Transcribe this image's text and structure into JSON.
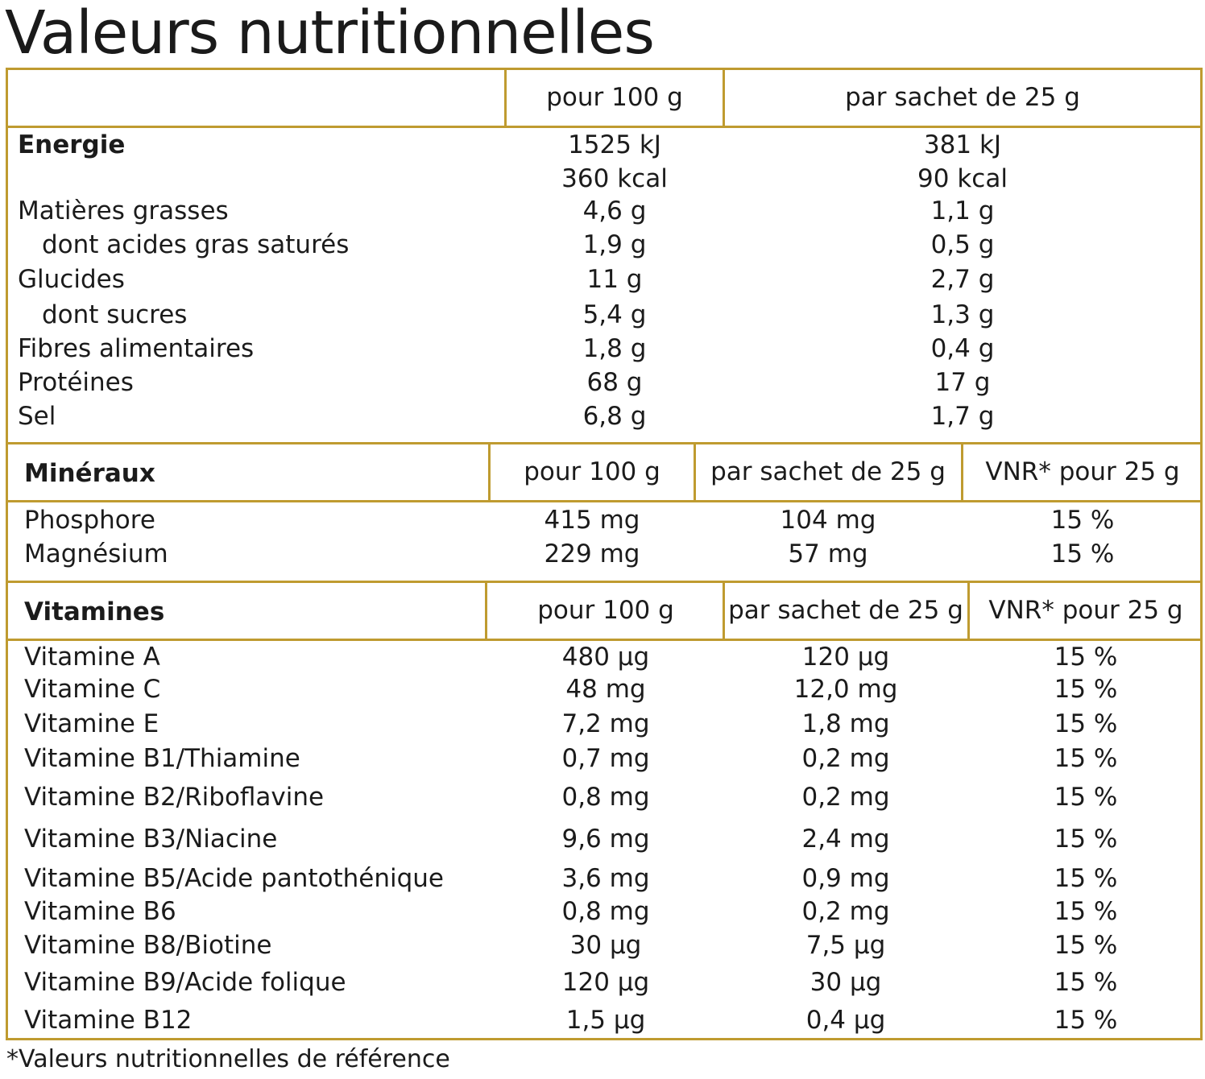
{
  "title": "Valeurs nutritionnelles",
  "nutrition": {
    "headers": [
      "pour 100 g",
      "par sachet de 25 g"
    ],
    "rows": [
      {
        "label": "Energie",
        "v100": "1525 kJ",
        "vsachet": "381 kJ"
      },
      {
        "label": "",
        "v100": "360 kcal",
        "vsachet": "90 kcal"
      },
      {
        "label": "Matières grasses",
        "v100": "4,6 g",
        "vsachet": "1,1 g"
      },
      {
        "label": "dont acides gras saturés",
        "v100": "1,9 g",
        "vsachet": "0,5 g"
      },
      {
        "label": "Glucides",
        "v100": "11 g",
        "vsachet": "2,7 g"
      },
      {
        "label": "dont sucres",
        "v100": "5,4 g",
        "vsachet": "1,3 g"
      },
      {
        "label": "Fibres alimentaires",
        "v100": "1,8 g",
        "vsachet": "0,4 g"
      },
      {
        "label": "Protéines",
        "v100": "68 g",
        "vsachet": "17 g"
      },
      {
        "label": "Sel",
        "v100": "6,8 g",
        "vsachet": "1,7 g"
      }
    ]
  },
  "minerals": {
    "title": "Minéraux",
    "headers": [
      "pour 100 g",
      "par sachet de 25 g",
      "VNR* pour 25 g"
    ],
    "rows": [
      {
        "label": "Phosphore",
        "v100": "415 mg",
        "vsachet": "104 mg",
        "vnr": "15 %"
      },
      {
        "label": "Magnésium",
        "v100": "229 mg",
        "vsachet": "57 mg",
        "vnr": "15 %"
      }
    ]
  },
  "vitamins": {
    "title": "Vitamines",
    "headers": [
      "pour 100 g",
      "par sachet de 25 g",
      "VNR* pour 25 g"
    ],
    "rows": [
      {
        "label": "Vitamine A",
        "v100": "480 µg",
        "vsachet": "120 µg",
        "vnr": "15 %"
      },
      {
        "label": "Vitamine C",
        "v100": "48 mg",
        "vsachet": "12,0 mg",
        "vnr": "15 %"
      },
      {
        "label": "Vitamine E",
        "v100": "7,2 mg",
        "vsachet": "1,8 mg",
        "vnr": "15 %"
      },
      {
        "label": "Vitamine B1/Thiamine",
        "v100": "0,7 mg",
        "vsachet": "0,2 mg",
        "vnr": "15 %"
      },
      {
        "label": "Vitamine B2/Riboflavine",
        "v100": "0,8 mg",
        "vsachet": "0,2 mg",
        "vnr": "15 %"
      },
      {
        "label": "Vitamine B3/Niacine",
        "v100": "9,6 mg",
        "vsachet": "2,4 mg",
        "vnr": "15 %"
      },
      {
        "label": "Vitamine B5/Acide pantothénique",
        "v100": "3,6 mg",
        "vsachet": "0,9 mg",
        "vnr": "15 %"
      },
      {
        "label": "Vitamine B6",
        "v100": "0,8 mg",
        "vsachet": "0,2 mg",
        "vnr": "15 %"
      },
      {
        "label": "Vitamine B8/Biotine",
        "v100": "30 µg",
        "vsachet": "7,5 µg",
        "vnr": "15 %"
      },
      {
        "label": "Vitamine B9/Acide folique",
        "v100": "120 µg",
        "vsachet": "30 µg",
        "vnr": "15 %"
      },
      {
        "label": "Vitamine B12",
        "v100": "1,5 µg",
        "vsachet": "0,4 µg",
        "vnr": "15 %"
      }
    ]
  },
  "footnote": "*Valeurs nutritionnelles de référence"
}
